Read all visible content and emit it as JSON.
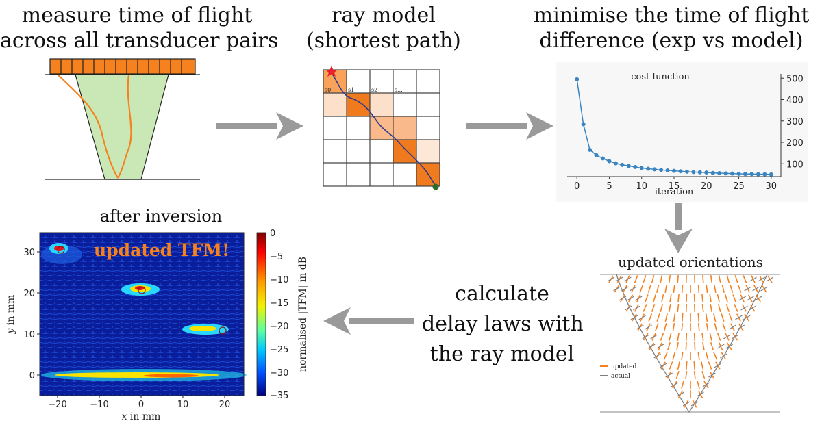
{
  "steps": {
    "measure": {
      "lines": [
        "measure time of flight",
        "across all transducer pairs"
      ]
    },
    "ray": {
      "lines": [
        "ray model",
        "(shortest path)"
      ]
    },
    "minimise": {
      "lines": [
        "minimise the time of flight",
        "difference (exp vs model)"
      ]
    },
    "calculate": {
      "lines": [
        "calculate",
        "delay laws with",
        "the ray model"
      ]
    },
    "inversion": {
      "title": "after inversion"
    }
  },
  "ray_grid": {
    "labels": [
      "s0",
      "s1",
      "s2",
      "s..."
    ]
  },
  "orientations": {
    "title": "updated orientations",
    "legend": [
      {
        "label": "updated",
        "color": "#f5821f"
      },
      {
        "label": "actual",
        "color": "#7f7f7f"
      }
    ]
  },
  "tfm": {
    "overlay_text": "updated TFM!",
    "xlabel_italic": "x",
    "xlabel_rest": " in mm",
    "ylabel_italic": "y",
    "ylabel_rest": " in mm",
    "colorbar_label": "normalised |TFM| in dB",
    "colorbar_ticks": [
      "0",
      "−5",
      "−10",
      "−15",
      "−20",
      "−25",
      "−30",
      "−35"
    ],
    "x_ticks": [
      "−20",
      "−10",
      "0",
      "10",
      "20"
    ],
    "y_ticks": [
      "30",
      "20",
      "10",
      "0"
    ]
  },
  "chart_data": {
    "type": "line",
    "title": "cost function",
    "xlabel": "iteration",
    "ylabel": "",
    "x": [
      0,
      1,
      2,
      3,
      4,
      5,
      6,
      7,
      8,
      9,
      10,
      11,
      12,
      13,
      14,
      15,
      16,
      17,
      18,
      19,
      20,
      21,
      22,
      23,
      24,
      25,
      26,
      27,
      28,
      29,
      30
    ],
    "values": [
      495,
      285,
      165,
      140,
      125,
      112,
      102,
      95,
      90,
      85,
      80,
      77,
      74,
      71,
      69,
      67,
      65,
      63,
      61,
      60,
      59,
      57,
      56,
      55,
      54,
      53,
      52,
      52,
      51,
      51,
      50
    ],
    "x_ticks": [
      "0",
      "5",
      "10",
      "15",
      "20",
      "25",
      "30"
    ],
    "y_ticks": [
      "100",
      "200",
      "300",
      "400",
      "500"
    ],
    "xlim": [
      -1.5,
      31.5
    ],
    "ylim": [
      40,
      520
    ],
    "color": "#3a84c0"
  }
}
